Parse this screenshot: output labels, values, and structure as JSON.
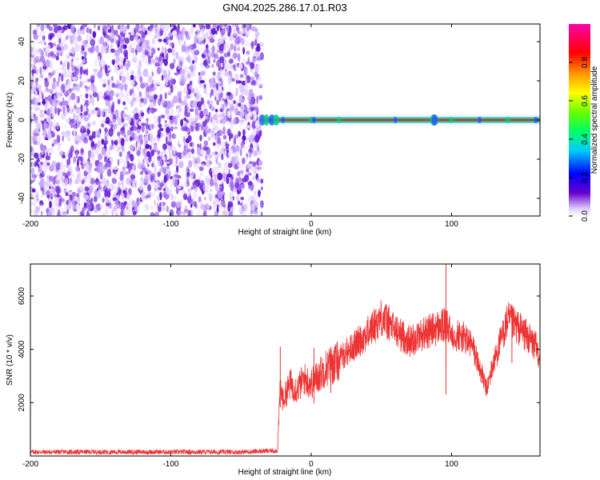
{
  "title": "GN04.2025.286.17.01.R03",
  "chart_data": [
    {
      "type": "heatmap",
      "xlabel": "Height of straight line (km)",
      "ylabel": "Frequency (Hz)",
      "xlim": [
        -200,
        163
      ],
      "ylim": [
        -49,
        49
      ],
      "x_ticks": [
        -200,
        -100,
        0,
        100
      ],
      "y_ticks": [
        -40,
        -20,
        0,
        20,
        40
      ],
      "noise_region_x": [
        -200,
        -35
      ],
      "signal_line_frequency": 0,
      "colorbar": {
        "label": "Normalized spectral amplitude",
        "range": [
          0,
          1
        ],
        "ticks": [
          "0.0",
          "0.2",
          "0.4",
          "0.6",
          "0.8"
        ],
        "colors": [
          "#ffffff",
          "#6600cc",
          "#0000ff",
          "#00ccff",
          "#00ff66",
          "#66ff00",
          "#ffff00",
          "#ff9900",
          "#ff0000",
          "#ff00aa"
        ]
      },
      "colors": {
        "noise": "#6a00d8",
        "line_core": "#ff2020",
        "line_halo": "#00d8a8"
      }
    },
    {
      "type": "line",
      "xlabel": "Height of straight line (km)",
      "ylabel": "SNR (10 * v/v)",
      "xlim": [
        -200,
        163
      ],
      "ylim": [
        0,
        7200
      ],
      "x_ticks": [
        -200,
        -100,
        0,
        100
      ],
      "y_ticks": [
        2000,
        4000,
        6000
      ],
      "color": "#ee3333",
      "x": [
        -200,
        -150,
        -100,
        -50,
        -24,
        -22,
        -20,
        -15,
        -10,
        -5,
        0,
        5,
        10,
        15,
        20,
        25,
        30,
        40,
        50,
        55,
        60,
        70,
        80,
        90,
        95,
        100,
        110,
        115,
        120,
        125,
        130,
        140,
        150,
        160,
        163
      ],
      "y": [
        150,
        150,
        150,
        150,
        200,
        2600,
        2100,
        2700,
        2500,
        2900,
        2700,
        3000,
        3300,
        3400,
        3600,
        3900,
        4100,
        4600,
        5200,
        5000,
        4700,
        4300,
        4600,
        4800,
        4900,
        4600,
        4400,
        4100,
        3300,
        2500,
        3500,
        5100,
        4700,
        4100,
        3700
      ],
      "spikes": [
        {
          "x": -22,
          "y": 4100
        },
        {
          "x": 2,
          "y": 4050
        },
        {
          "x": 14,
          "y": 4100
        },
        {
          "x": 96,
          "y": 7200
        },
        {
          "x": 143,
          "y": 5400
        }
      ]
    }
  ]
}
